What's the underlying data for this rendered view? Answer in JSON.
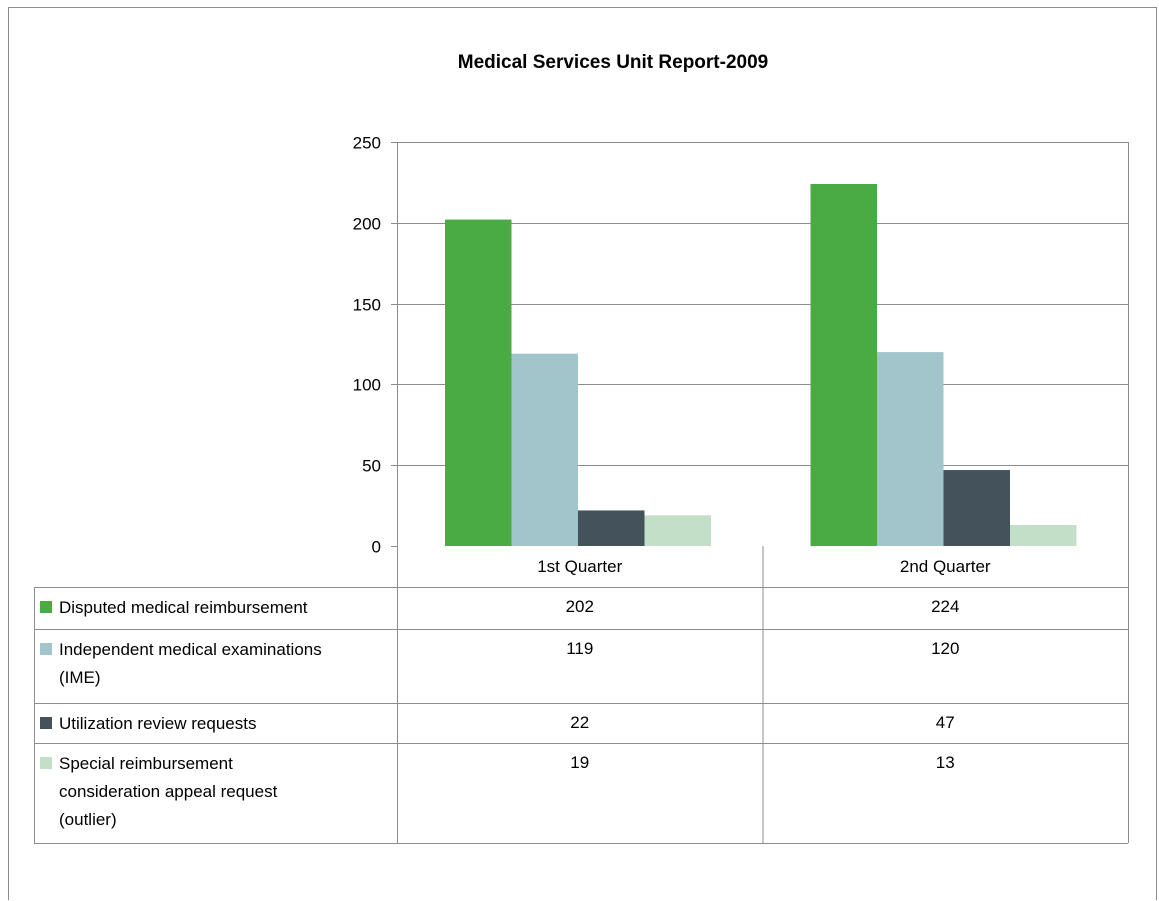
{
  "chart_data": {
    "type": "bar",
    "title": "Medical Services Unit Report-2009",
    "categories": [
      "1st Quarter",
      "2nd Quarter"
    ],
    "ylim": [
      0,
      250
    ],
    "yticks": [
      0,
      50,
      100,
      150,
      200,
      250
    ],
    "grid": true,
    "legend": "data-table",
    "series": [
      {
        "name": "Disputed medical reimbursement",
        "values": [
          202,
          224
        ],
        "color": "#4aab44"
      },
      {
        "name": "Independent medical examinations (IME)",
        "values": [
          119,
          120
        ],
        "color": "#a2c5cc"
      },
      {
        "name": "Utilization review  requests",
        "values": [
          22,
          47
        ],
        "color": "#44525c"
      },
      {
        "name": "Special reimbursement consideration appeal request (outlier)",
        "values": [
          19,
          13
        ],
        "color": "#c4dfc8"
      }
    ]
  },
  "table": {
    "row_labels": [
      [
        "Disputed medical reimbursement"
      ],
      [
        "Independent medical examinations",
        "(IME)"
      ],
      [
        "Utilization review  requests"
      ],
      [
        "Special reimbursement",
        "consideration appeal request",
        "(outlier)"
      ]
    ]
  }
}
